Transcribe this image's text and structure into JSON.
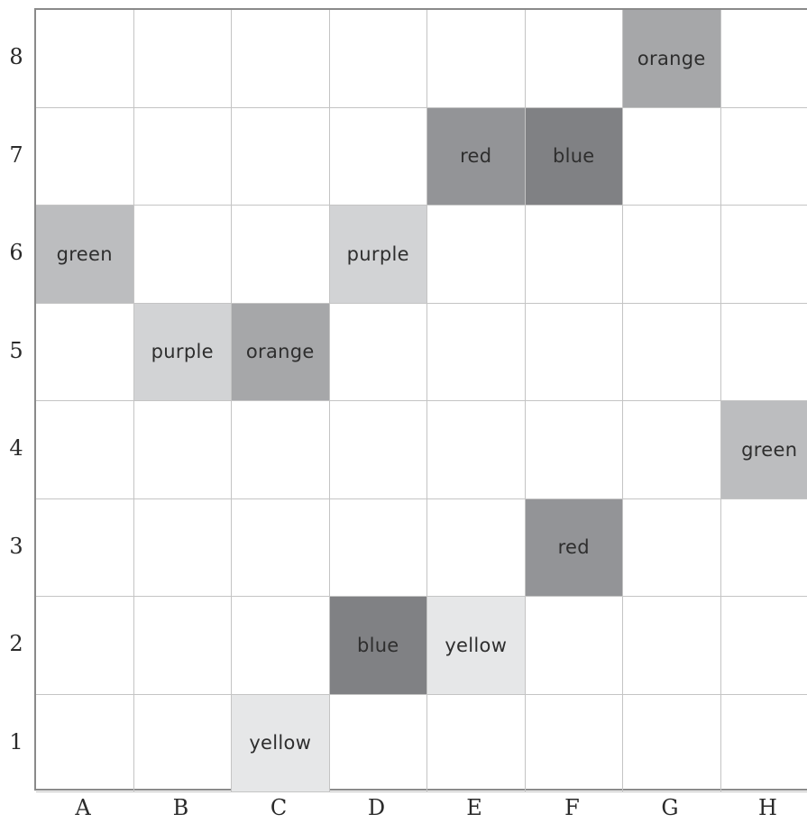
{
  "columns": [
    "A",
    "B",
    "C",
    "D",
    "E",
    "F",
    "G",
    "H"
  ],
  "rows": [
    "8",
    "7",
    "6",
    "5",
    "4",
    "3",
    "2",
    "1"
  ],
  "shades": {
    "orange": "#a6a7a9",
    "red": "#939497",
    "blue": "#808184",
    "green": "#bcbdbf",
    "purple": "#d2d3d5",
    "yellow": "#e6e7e8"
  },
  "cells": [
    {
      "col": "G",
      "row": "8",
      "label": "orange"
    },
    {
      "col": "E",
      "row": "7",
      "label": "red"
    },
    {
      "col": "F",
      "row": "7",
      "label": "blue"
    },
    {
      "col": "A",
      "row": "6",
      "label": "green"
    },
    {
      "col": "D",
      "row": "6",
      "label": "purple"
    },
    {
      "col": "B",
      "row": "5",
      "label": "purple"
    },
    {
      "col": "C",
      "row": "5",
      "label": "orange"
    },
    {
      "col": "H",
      "row": "4",
      "label": "green"
    },
    {
      "col": "F",
      "row": "3",
      "label": "red"
    },
    {
      "col": "D",
      "row": "2",
      "label": "blue"
    },
    {
      "col": "E",
      "row": "2",
      "label": "yellow"
    },
    {
      "col": "C",
      "row": "1",
      "label": "yellow"
    }
  ]
}
